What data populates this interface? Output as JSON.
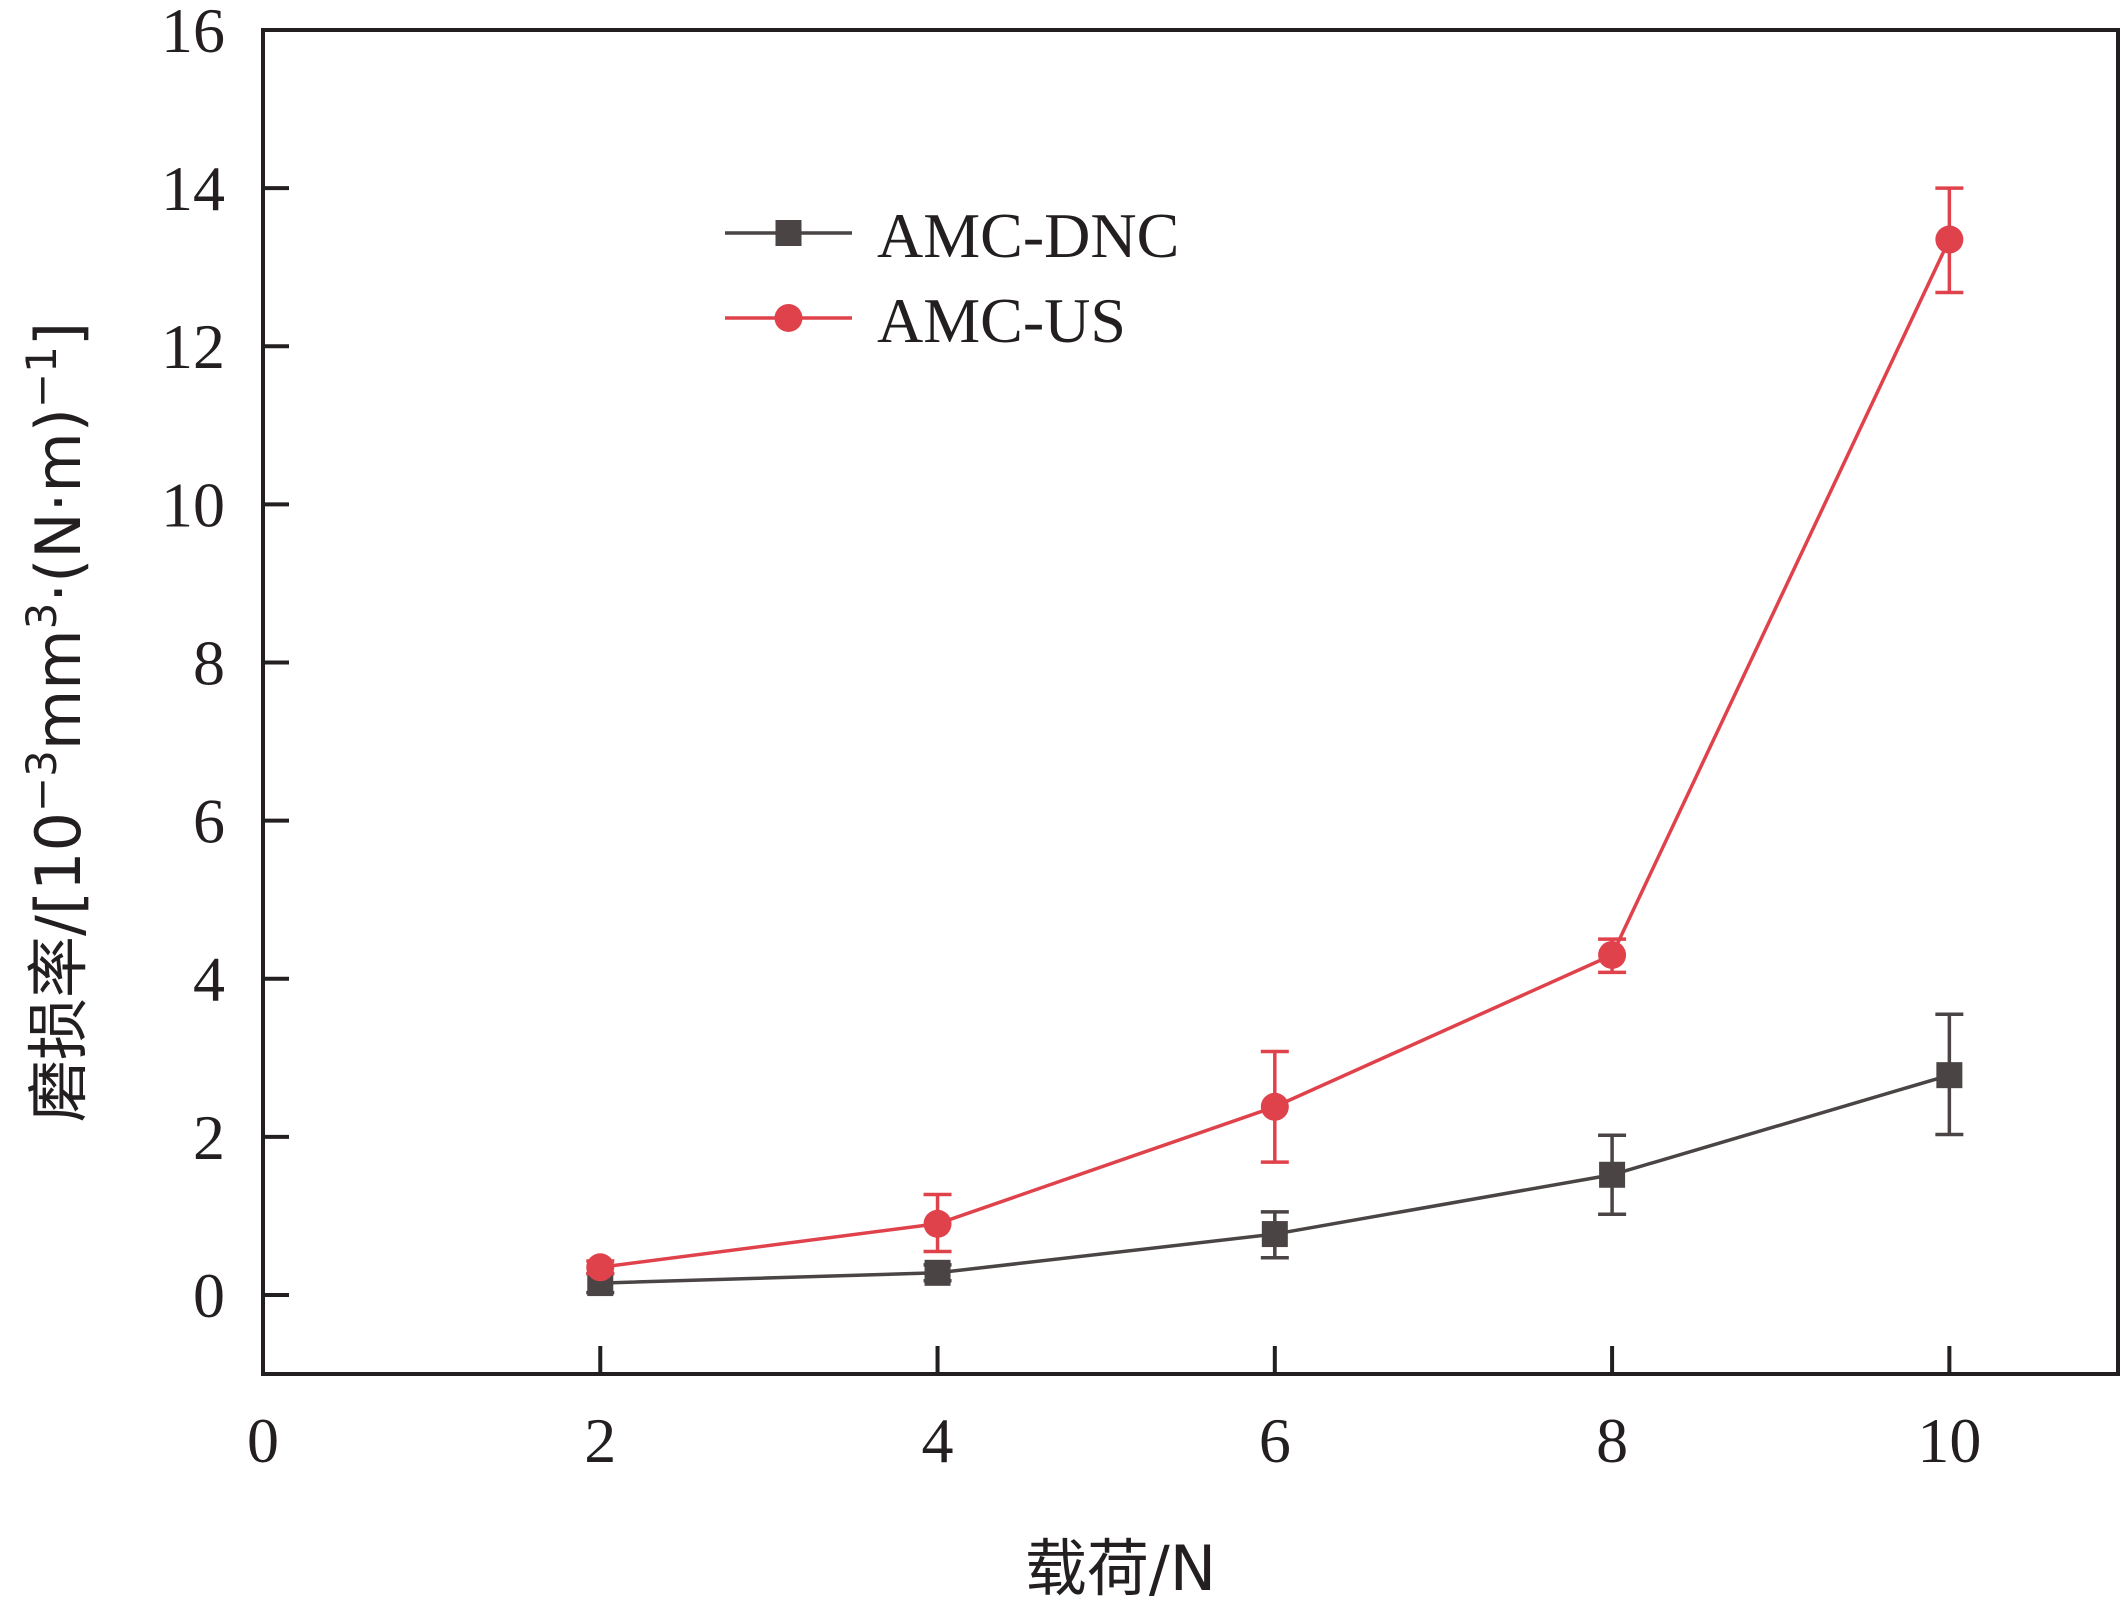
{
  "chart_data": {
    "type": "line",
    "title": "",
    "xlabel": "载荷/N",
    "ylabel": {
      "prefix": "磨损率/[10",
      "sup1": "−3",
      "mid": "mm",
      "sup2": "3",
      "suffix": "·(N·m)",
      "sup3": "−1",
      "close": "]"
    },
    "xlim": [
      0,
      11
    ],
    "ylim": [
      -1,
      16
    ],
    "x_ticks": [
      0,
      2,
      4,
      6,
      8,
      10
    ],
    "x_tick_labels": [
      "0",
      "2",
      "4",
      "6",
      "8",
      "10"
    ],
    "y_ticks": [
      0,
      2,
      4,
      6,
      8,
      10,
      12,
      14,
      16
    ],
    "y_tick_labels": [
      "0",
      "2",
      "4",
      "6",
      "8",
      "10",
      "12",
      "14",
      "16"
    ],
    "grid": false,
    "legend_position": "top-center",
    "series": [
      {
        "name": "AMC-DNC",
        "color": "#4a4444",
        "marker": "square",
        "x": [
          2,
          4,
          6,
          8,
          10
        ],
        "y": [
          0.15,
          0.28,
          0.77,
          1.52,
          2.78
        ],
        "err_low": [
          0.12,
          0.1,
          0.3,
          0.5,
          0.75
        ],
        "err_high": [
          0.12,
          0.1,
          0.28,
          0.5,
          0.77
        ]
      },
      {
        "name": "AMC-US",
        "color": "#e0424c",
        "marker": "circle",
        "x": [
          2,
          4,
          6,
          8,
          10
        ],
        "y": [
          0.35,
          0.9,
          2.38,
          4.3,
          13.35
        ],
        "err_low": [
          0.08,
          0.35,
          0.7,
          0.22,
          0.67
        ],
        "err_high": [
          0.08,
          0.37,
          0.7,
          0.2,
          0.65
        ]
      }
    ]
  }
}
